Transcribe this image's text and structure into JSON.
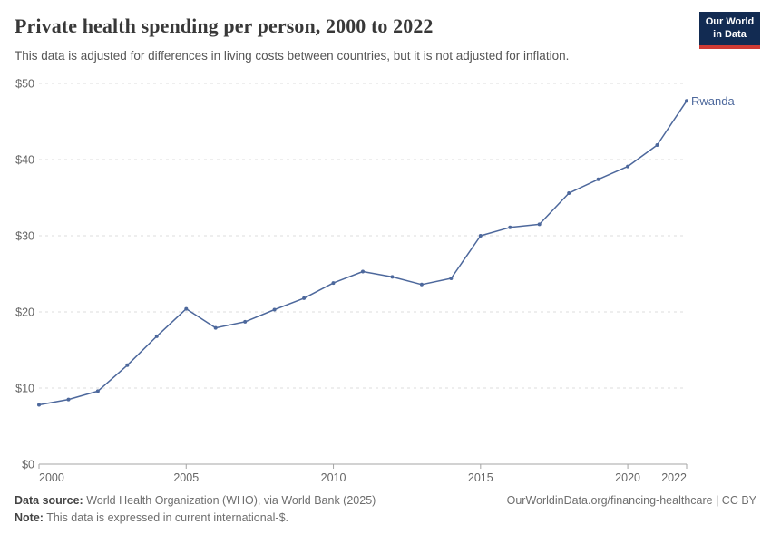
{
  "header": {
    "title": "Private health spending per person, 2000 to 2022",
    "subtitle": "This data is adjusted for differences in living costs between countries, but it is not adjusted for inflation.",
    "logo": {
      "line1": "Our World",
      "line2": "in Data",
      "bg_color": "#122b52",
      "accent_color": "#cf3b34"
    }
  },
  "chart_data": {
    "type": "line",
    "title": "Private health spending per person, 2000 to 2022",
    "xlabel": "",
    "ylabel": "",
    "xlim": [
      2000,
      2022
    ],
    "ylim": [
      0,
      50
    ],
    "grid": "horizontal dashed",
    "legend_position": "end-of-line label",
    "x_ticks": [
      2000,
      2005,
      2010,
      2015,
      2020,
      2022
    ],
    "y_ticks": [
      0,
      10,
      20,
      30,
      40,
      50
    ],
    "y_tick_prefix": "$",
    "series": [
      {
        "name": "Rwanda",
        "color": "#4d689c",
        "x": [
          2000,
          2001,
          2002,
          2003,
          2004,
          2005,
          2006,
          2007,
          2008,
          2009,
          2010,
          2011,
          2012,
          2013,
          2014,
          2015,
          2016,
          2017,
          2018,
          2019,
          2020,
          2021,
          2022
        ],
        "values": [
          7.8,
          8.5,
          9.6,
          13.0,
          16.8,
          20.4,
          17.9,
          18.7,
          20.3,
          21.8,
          23.8,
          25.3,
          24.6,
          23.6,
          24.4,
          30.0,
          31.1,
          31.5,
          35.6,
          37.4,
          39.1,
          41.9,
          47.7
        ]
      }
    ]
  },
  "footer": {
    "source_label": "Data source:",
    "source_text": " World Health Organization (WHO), via World Bank (2025)",
    "note_label": "Note:",
    "note_text": " This data is expressed in current international-$.",
    "right_text": "OurWorldinData.org/financing-healthcare | CC BY"
  }
}
